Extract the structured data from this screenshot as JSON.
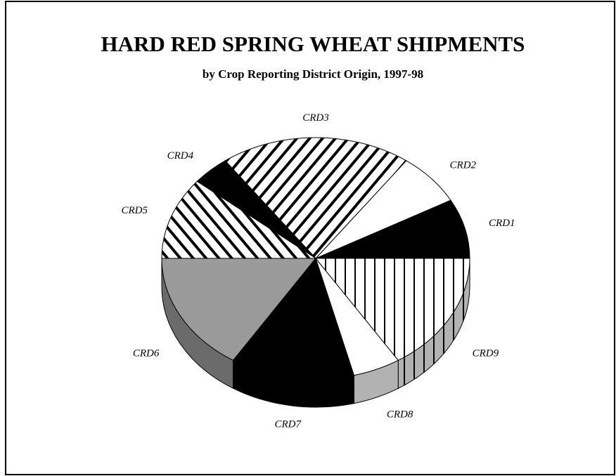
{
  "chart_data": {
    "type": "pie",
    "title": "HARD RED SPRING WHEAT SHIPMENTS",
    "subtitle": "by Crop Reporting District Origin, 1997-98",
    "categories": [
      "CRD1",
      "CRD2",
      "CRD3",
      "CRD4",
      "CRD5",
      "CRD6",
      "CRD7",
      "CRD8",
      "CRD9"
    ],
    "values": [
      8,
      7,
      20,
      4,
      11,
      16,
      13,
      5,
      16
    ],
    "colors": [
      "#000000",
      "#ffffff",
      "#ffffff",
      "#000000",
      "#ffffff",
      "#9a9a9a",
      "#000000",
      "#ffffff",
      "#ffffff"
    ],
    "hatch": [
      null,
      null,
      "diagonal",
      null,
      "back-diagonal",
      null,
      null,
      null,
      "vertical"
    ]
  }
}
